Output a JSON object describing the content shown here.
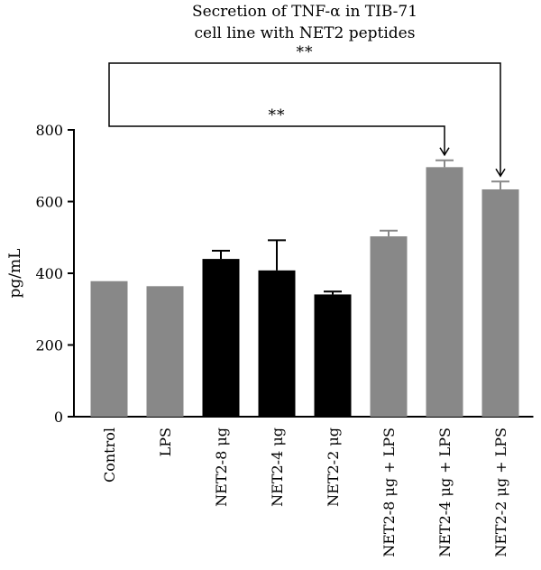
{
  "chart_data": {
    "type": "bar",
    "title": [
      "Secretion of TNF-α in TIB-71",
      "cell line with NET2 peptides"
    ],
    "xlabel": "",
    "ylabel": "pg/mL",
    "ylim": [
      0,
      800
    ],
    "yticks": [
      0,
      200,
      400,
      600,
      800
    ],
    "grid": false,
    "categories": [
      "Control",
      "LPS",
      "NET2-8 μg",
      "NET2-4 μg",
      "NET2-2 μg",
      "NET2-8 μg + LPS",
      "NET2-4 μg + LPS",
      "NET2-2 μg + LPS"
    ],
    "values": [
      378,
      364,
      440,
      408,
      341,
      503,
      696,
      634
    ],
    "errors": [
      0,
      0,
      23,
      84,
      8,
      16,
      19,
      22
    ],
    "colors": [
      "#888888",
      "#888888",
      "#000000",
      "#000000",
      "#000000",
      "#888888",
      "#888888",
      "#888888"
    ],
    "significance": [
      {
        "from": "Control",
        "to": "NET2-4 μg + LPS",
        "label": "**"
      },
      {
        "from": "Control",
        "to": "NET2-2 μg + LPS",
        "label": "**"
      }
    ]
  }
}
